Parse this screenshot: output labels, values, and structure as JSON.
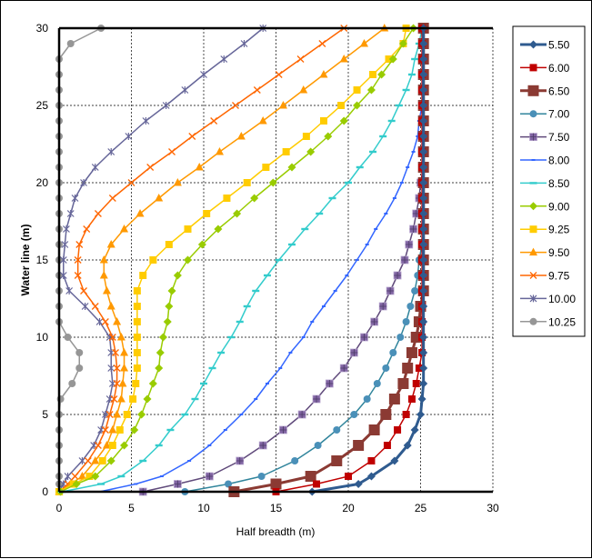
{
  "chart_data": {
    "type": "line",
    "xlabel": "Half breadth (m)",
    "ylabel": "Water line (m)",
    "xlim": [
      0,
      30
    ],
    "ylim": [
      0,
      30
    ],
    "x_ticks": [
      "0",
      "5",
      "10",
      "15",
      "20",
      "25",
      "30"
    ],
    "y_ticks": [
      "0",
      "5",
      "10",
      "15",
      "20",
      "25",
      "30"
    ],
    "grid": true,
    "legend_position": "right",
    "orientation": "series values are half breadth (x) at each water line (y)",
    "water_line": [
      0,
      0.5,
      1,
      2,
      3,
      4,
      5,
      6,
      7,
      8,
      9,
      10,
      11,
      12,
      13,
      14,
      15,
      16,
      17,
      18,
      19,
      20,
      21,
      22,
      23,
      24,
      25,
      26,
      27,
      28,
      29,
      30
    ],
    "series": [
      {
        "name": "5.50",
        "color": "#2f5b8f",
        "marker": "diamond",
        "values": [
          17.5,
          20.7,
          21.6,
          23.2,
          24.1,
          24.6,
          25.0,
          25.1,
          25.2,
          25.2,
          25.2,
          25.2,
          25.2,
          25.2,
          25.2,
          25.2,
          25.2,
          25.2,
          25.2,
          25.2,
          25.2,
          25.2,
          25.2,
          25.2,
          25.2,
          25.2,
          25.2,
          25.2,
          25.2,
          25.2,
          25.2,
          25.2
        ]
      },
      {
        "name": "6.00",
        "color": "#c00000",
        "marker": "square",
        "values": [
          15.0,
          17.8,
          20.0,
          21.6,
          22.7,
          23.4,
          24.0,
          24.4,
          24.7,
          24.9,
          25.1,
          25.1,
          25.1,
          25.1,
          25.1,
          25.1,
          25.1,
          25.1,
          25.1,
          25.1,
          25.1,
          25.1,
          25.1,
          25.1,
          25.1,
          25.1,
          25.1,
          25.1,
          25.1,
          25.1,
          25.1,
          25.1
        ]
      },
      {
        "name": "6.50",
        "color": "#8b3a33",
        "marker": "big-square",
        "values": [
          12.1,
          15.0,
          17.4,
          19.2,
          20.7,
          21.8,
          22.6,
          23.2,
          23.8,
          24.1,
          24.4,
          24.7,
          24.9,
          25.0,
          25.2,
          25.2,
          25.2,
          25.2,
          25.2,
          25.2,
          25.2,
          25.2,
          25.2,
          25.2,
          25.2,
          25.2,
          25.2,
          25.2,
          25.2,
          25.2,
          25.2,
          25.2
        ]
      },
      {
        "name": "7.00",
        "color": "#31859c",
        "marker": "circle",
        "values": [
          8.7,
          11.7,
          14.0,
          16.3,
          17.9,
          19.2,
          20.4,
          21.3,
          22.0,
          22.6,
          23.1,
          23.6,
          24.0,
          24.3,
          24.6,
          24.8,
          24.9,
          25.1,
          25.2,
          25.2,
          25.2,
          25.2,
          25.2,
          25.2,
          25.2,
          25.2,
          25.2,
          25.2,
          25.2,
          25.2,
          25.2,
          25.2
        ]
      },
      {
        "name": "7.50",
        "color": "#604a7b",
        "marker": "square-plus",
        "values": [
          5.8,
          8.2,
          10.4,
          12.5,
          14.1,
          15.5,
          16.8,
          17.8,
          18.7,
          19.7,
          20.4,
          21.1,
          21.8,
          22.4,
          22.9,
          23.4,
          23.9,
          24.2,
          24.5,
          24.7,
          24.9,
          25.0,
          25.2,
          25.2,
          25.2,
          25.2,
          25.2,
          25.2,
          25.2,
          25.2,
          25.2,
          25.2
        ]
      },
      {
        "name": "8.00",
        "color": "#3366ff",
        "marker": "small-dash",
        "values": [
          2.8,
          5.3,
          7.1,
          9.0,
          10.4,
          11.5,
          12.6,
          13.6,
          14.4,
          15.3,
          16.0,
          16.9,
          17.5,
          18.3,
          19.1,
          19.9,
          20.6,
          21.3,
          21.9,
          22.6,
          23.2,
          23.7,
          24.1,
          24.5,
          24.8,
          24.9,
          25.1,
          25.2,
          25.2,
          25.2,
          25.2,
          25.2
        ]
      },
      {
        "name": "8.50",
        "color": "#33cccc",
        "marker": "dash",
        "values": [
          0.2,
          2.9,
          4.3,
          5.8,
          6.9,
          7.7,
          8.7,
          9.4,
          10.0,
          10.6,
          11.2,
          11.9,
          12.5,
          13.0,
          13.6,
          14.4,
          15.2,
          16.1,
          17.0,
          18.0,
          18.9,
          20.0,
          20.8,
          21.7,
          22.4,
          23.0,
          23.5,
          24.0,
          24.4,
          24.6,
          24.9,
          25.1
        ]
      },
      {
        "name": "9.00",
        "color": "#99cc00",
        "marker": "diamond",
        "values": [
          0.1,
          1.2,
          2.5,
          3.6,
          4.5,
          5.2,
          5.7,
          6.1,
          6.5,
          6.9,
          7.0,
          7.2,
          7.5,
          7.6,
          7.8,
          8.2,
          8.9,
          9.9,
          11.0,
          12.3,
          13.5,
          14.8,
          16.1,
          17.4,
          18.6,
          19.7,
          20.6,
          21.6,
          22.3,
          23.1,
          23.8,
          24.5
        ]
      },
      {
        "name": "9.25",
        "color": "#ffcc00",
        "marker": "square",
        "values": [
          0,
          1.0,
          2.1,
          3.0,
          3.7,
          4.2,
          4.7,
          5.1,
          5.3,
          5.4,
          5.4,
          5.4,
          5.4,
          5.4,
          5.4,
          5.8,
          6.5,
          7.6,
          8.9,
          10.2,
          11.6,
          13.0,
          14.3,
          15.7,
          17.1,
          18.3,
          19.5,
          20.6,
          21.7,
          22.8,
          23.8,
          24.0
        ]
      },
      {
        "name": "9.50",
        "color": "#ff9900",
        "marker": "triangle",
        "values": [
          0,
          0.8,
          1.6,
          2.5,
          3.3,
          3.7,
          4.0,
          4.3,
          4.4,
          4.5,
          4.5,
          4.3,
          4.0,
          3.6,
          3.3,
          3.1,
          3.1,
          3.6,
          4.5,
          5.6,
          6.9,
          8.2,
          9.7,
          11.1,
          12.6,
          14.1,
          15.5,
          16.9,
          18.3,
          19.7,
          21.1,
          22.5
        ]
      },
      {
        "name": "9.75",
        "color": "#ff6600",
        "marker": "x",
        "values": [
          0,
          0.6,
          1.1,
          2.0,
          2.7,
          3.2,
          3.5,
          3.8,
          4.0,
          4.0,
          3.9,
          3.7,
          3.2,
          2.5,
          1.7,
          1.3,
          1.3,
          1.4,
          1.9,
          2.7,
          3.7,
          5.0,
          6.3,
          7.8,
          9.2,
          10.7,
          12.2,
          13.7,
          15.2,
          16.7,
          18.2,
          19.7
        ]
      },
      {
        "name": "10.00",
        "color": "#666699",
        "marker": "asterisk",
        "values": [
          0,
          0.3,
          0.6,
          1.6,
          2.4,
          2.9,
          3.2,
          3.5,
          3.7,
          3.6,
          3.6,
          3.5,
          2.8,
          1.8,
          0.7,
          0.3,
          0.3,
          0.4,
          0.5,
          0.8,
          1.1,
          1.7,
          2.5,
          3.6,
          4.8,
          6.0,
          7.4,
          8.7,
          10.0,
          11.4,
          12.8,
          14.1
        ]
      },
      {
        "name": "10.25",
        "color": "#969696",
        "marker": "circle",
        "values": [
          0,
          0,
          0,
          0,
          0,
          0,
          0,
          0.1,
          0.9,
          1.4,
          1.4,
          0.6,
          0,
          0,
          0,
          0,
          0,
          0,
          0,
          0,
          0,
          0,
          0,
          0,
          0,
          0,
          0,
          0,
          0,
          0,
          0.8,
          2.9
        ]
      }
    ]
  }
}
